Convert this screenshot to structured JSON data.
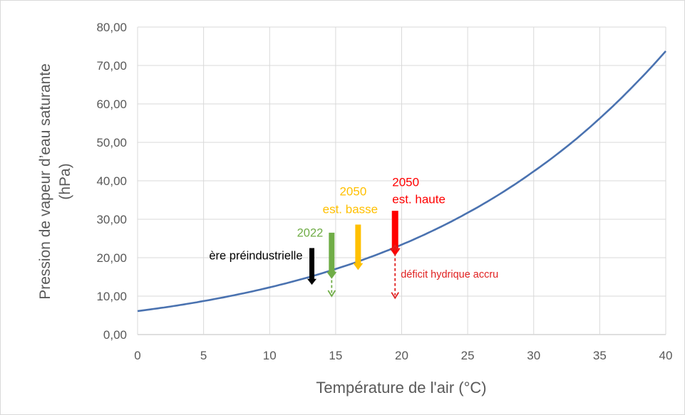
{
  "chart_data": {
    "type": "line",
    "title": "",
    "xlabel": "Température de l'air (°C)",
    "ylabel_lines": [
      "Pression de vapeur d’eau saturante",
      "(hPa)"
    ],
    "xlim": [
      0,
      40
    ],
    "ylim": [
      0,
      80
    ],
    "x_ticks": [
      "0",
      "5",
      "10",
      "15",
      "20",
      "25",
      "30",
      "35",
      "40"
    ],
    "y_ticks": [
      "0,00",
      "10,00",
      "20,00",
      "30,00",
      "40,00",
      "50,00",
      "60,00",
      "70,00",
      "80,00"
    ],
    "grid": true,
    "legend": "none",
    "series": [
      {
        "color": "#4a72b0",
        "x": [
          0,
          2.5,
          5,
          7.5,
          10,
          12.5,
          15,
          17.5,
          20,
          22.5,
          25,
          27.5,
          30,
          32.5,
          35,
          37.5,
          40
        ],
        "y": [
          6.11,
          7.3,
          8.72,
          10.37,
          12.28,
          14.49,
          17.05,
          20.0,
          23.39,
          27.26,
          31.69,
          36.71,
          42.46,
          48.89,
          56.24,
          64.52,
          73.75
        ]
      }
    ],
    "annotations": {
      "preindustrial": {
        "label": "ère préindustrielle",
        "x": 13.2,
        "color": "#000000"
      },
      "y2022": {
        "label": "2022",
        "x": 14.7,
        "color": "#70ad47"
      },
      "y2050_low": {
        "label_year": "2050",
        "label_sub": "est. basse",
        "x": 16.7,
        "color": "#ffc000"
      },
      "y2050_high": {
        "label_year": "2050",
        "label_sub": "est. haute",
        "x": 19.5,
        "color": "#ff0000"
      },
      "deficit": {
        "label": "déficit hydrique accru",
        "color": "#e02020"
      }
    }
  }
}
